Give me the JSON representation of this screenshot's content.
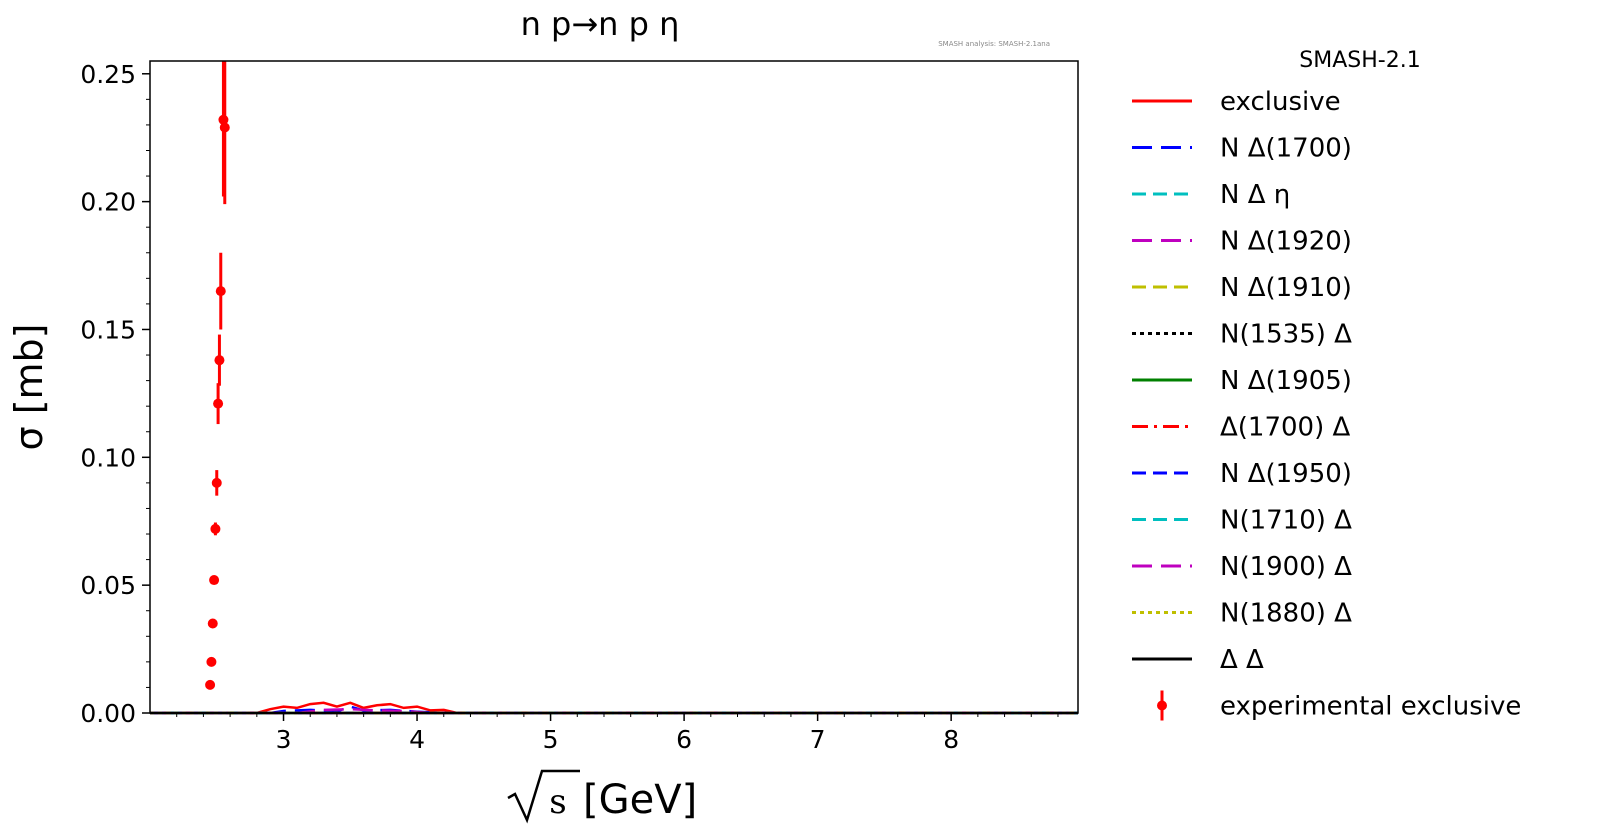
{
  "chart_data": {
    "type": "line",
    "title": "n p→n p η",
    "watermark": "SMASH analysis: SMASH-2.1ana",
    "xlabel_main": "[GeV]",
    "xlabel_radicand": "s",
    "ylabel": "σ [mb]",
    "legend_title": "SMASH-2.1",
    "legend_position": "outside-right",
    "grid": false,
    "xlim": [
      2.0,
      8.95
    ],
    "ylim": [
      0.0,
      0.255
    ],
    "xticks": [
      "3",
      "4",
      "5",
      "6",
      "7",
      "8"
    ],
    "yticks": [
      "0.00",
      "0.05",
      "0.10",
      "0.15",
      "0.20",
      "0.25"
    ],
    "series": [
      {
        "name": "exclusive",
        "color": "#ff0000",
        "dash": "solid",
        "x": [
          2.0,
          2.8,
          2.9,
          3.0,
          3.1,
          3.2,
          3.3,
          3.4,
          3.5,
          3.6,
          3.7,
          3.8,
          3.9,
          4.0,
          4.1,
          4.2,
          4.3,
          8.95
        ],
        "y": [
          0.0,
          0.0,
          0.0015,
          0.0025,
          0.002,
          0.0035,
          0.004,
          0.0025,
          0.004,
          0.002,
          0.003,
          0.0035,
          0.002,
          0.0025,
          0.001,
          0.0012,
          0.0,
          0.0
        ]
      },
      {
        "name": "N Δ(1700)",
        "color": "#0000ff",
        "dash": "long-dash",
        "x": [
          2.0,
          2.9,
          3.0,
          3.2,
          3.4,
          3.5,
          3.6,
          3.8,
          4.0,
          4.2,
          8.95
        ],
        "y": [
          0.0,
          0.0,
          0.0008,
          0.0012,
          0.0006,
          0.0025,
          0.001,
          0.0012,
          0.0005,
          0.0,
          0.0
        ]
      },
      {
        "name": "N Δ η",
        "color": "#00bfbf",
        "dash": "dash",
        "x": [
          2.0,
          8.95
        ],
        "y": [
          0.0,
          0.0
        ]
      },
      {
        "name": "N Δ(1920)",
        "color": "#bf00bf",
        "dash": "long-dash",
        "x": [
          2.0,
          3.1,
          3.3,
          3.5,
          3.7,
          3.9,
          4.1,
          8.95
        ],
        "y": [
          0.0,
          0.0,
          0.0012,
          0.0015,
          0.001,
          0.0008,
          0.0,
          0.0
        ]
      },
      {
        "name": "N Δ(1910)",
        "color": "#bfbf00",
        "dash": "dash",
        "x": [
          2.0,
          8.95
        ],
        "y": [
          0.0,
          0.0
        ]
      },
      {
        "name": "N(1535) Δ",
        "color": "#000000",
        "dash": "dot",
        "x": [
          2.0,
          8.95
        ],
        "y": [
          0.0,
          0.0
        ]
      },
      {
        "name": "N Δ(1905)",
        "color": "#008000",
        "dash": "solid",
        "x": [
          2.0,
          8.95
        ],
        "y": [
          0.0,
          0.0
        ]
      },
      {
        "name": "Δ(1700) Δ",
        "color": "#ff0000",
        "dash": "dash-dot",
        "x": [
          2.0,
          8.95
        ],
        "y": [
          0.0,
          0.0
        ]
      },
      {
        "name": "N Δ(1950)",
        "color": "#0000ff",
        "dash": "dash",
        "x": [
          2.0,
          8.95
        ],
        "y": [
          0.0,
          0.0
        ]
      },
      {
        "name": "N(1710) Δ",
        "color": "#00bfbf",
        "dash": "dash",
        "x": [
          2.0,
          8.95
        ],
        "y": [
          0.0,
          0.0
        ]
      },
      {
        "name": "N(1900) Δ",
        "color": "#bf00bf",
        "dash": "long-dash",
        "x": [
          2.0,
          8.95
        ],
        "y": [
          0.0,
          0.0
        ]
      },
      {
        "name": "N(1880) Δ",
        "color": "#bfbf00",
        "dash": "dot",
        "x": [
          2.0,
          8.95
        ],
        "y": [
          0.0,
          0.0
        ]
      },
      {
        "name": "Δ Δ",
        "color": "#000000",
        "dash": "solid",
        "x": [
          2.0,
          8.95
        ],
        "y": [
          0.0,
          0.0
        ]
      }
    ],
    "experimental": {
      "name": "experimental exclusive",
      "color": "#ff0000",
      "points": [
        {
          "x": 2.45,
          "y": 0.011,
          "err": 0.0005
        },
        {
          "x": 2.46,
          "y": 0.02,
          "err": 0.0008
        },
        {
          "x": 2.47,
          "y": 0.035,
          "err": 0.001
        },
        {
          "x": 2.48,
          "y": 0.052,
          "err": 0.0015
        },
        {
          "x": 2.49,
          "y": 0.072,
          "err": 0.0025
        },
        {
          "x": 2.5,
          "y": 0.09,
          "err": 0.005
        },
        {
          "x": 2.51,
          "y": 0.121,
          "err": 0.008
        },
        {
          "x": 2.52,
          "y": 0.138,
          "err": 0.01
        },
        {
          "x": 2.53,
          "y": 0.165,
          "err": 0.015
        },
        {
          "x": 2.55,
          "y": 0.232,
          "err": 0.03
        },
        {
          "x": 2.56,
          "y": 0.229,
          "err": 0.03
        }
      ]
    }
  }
}
